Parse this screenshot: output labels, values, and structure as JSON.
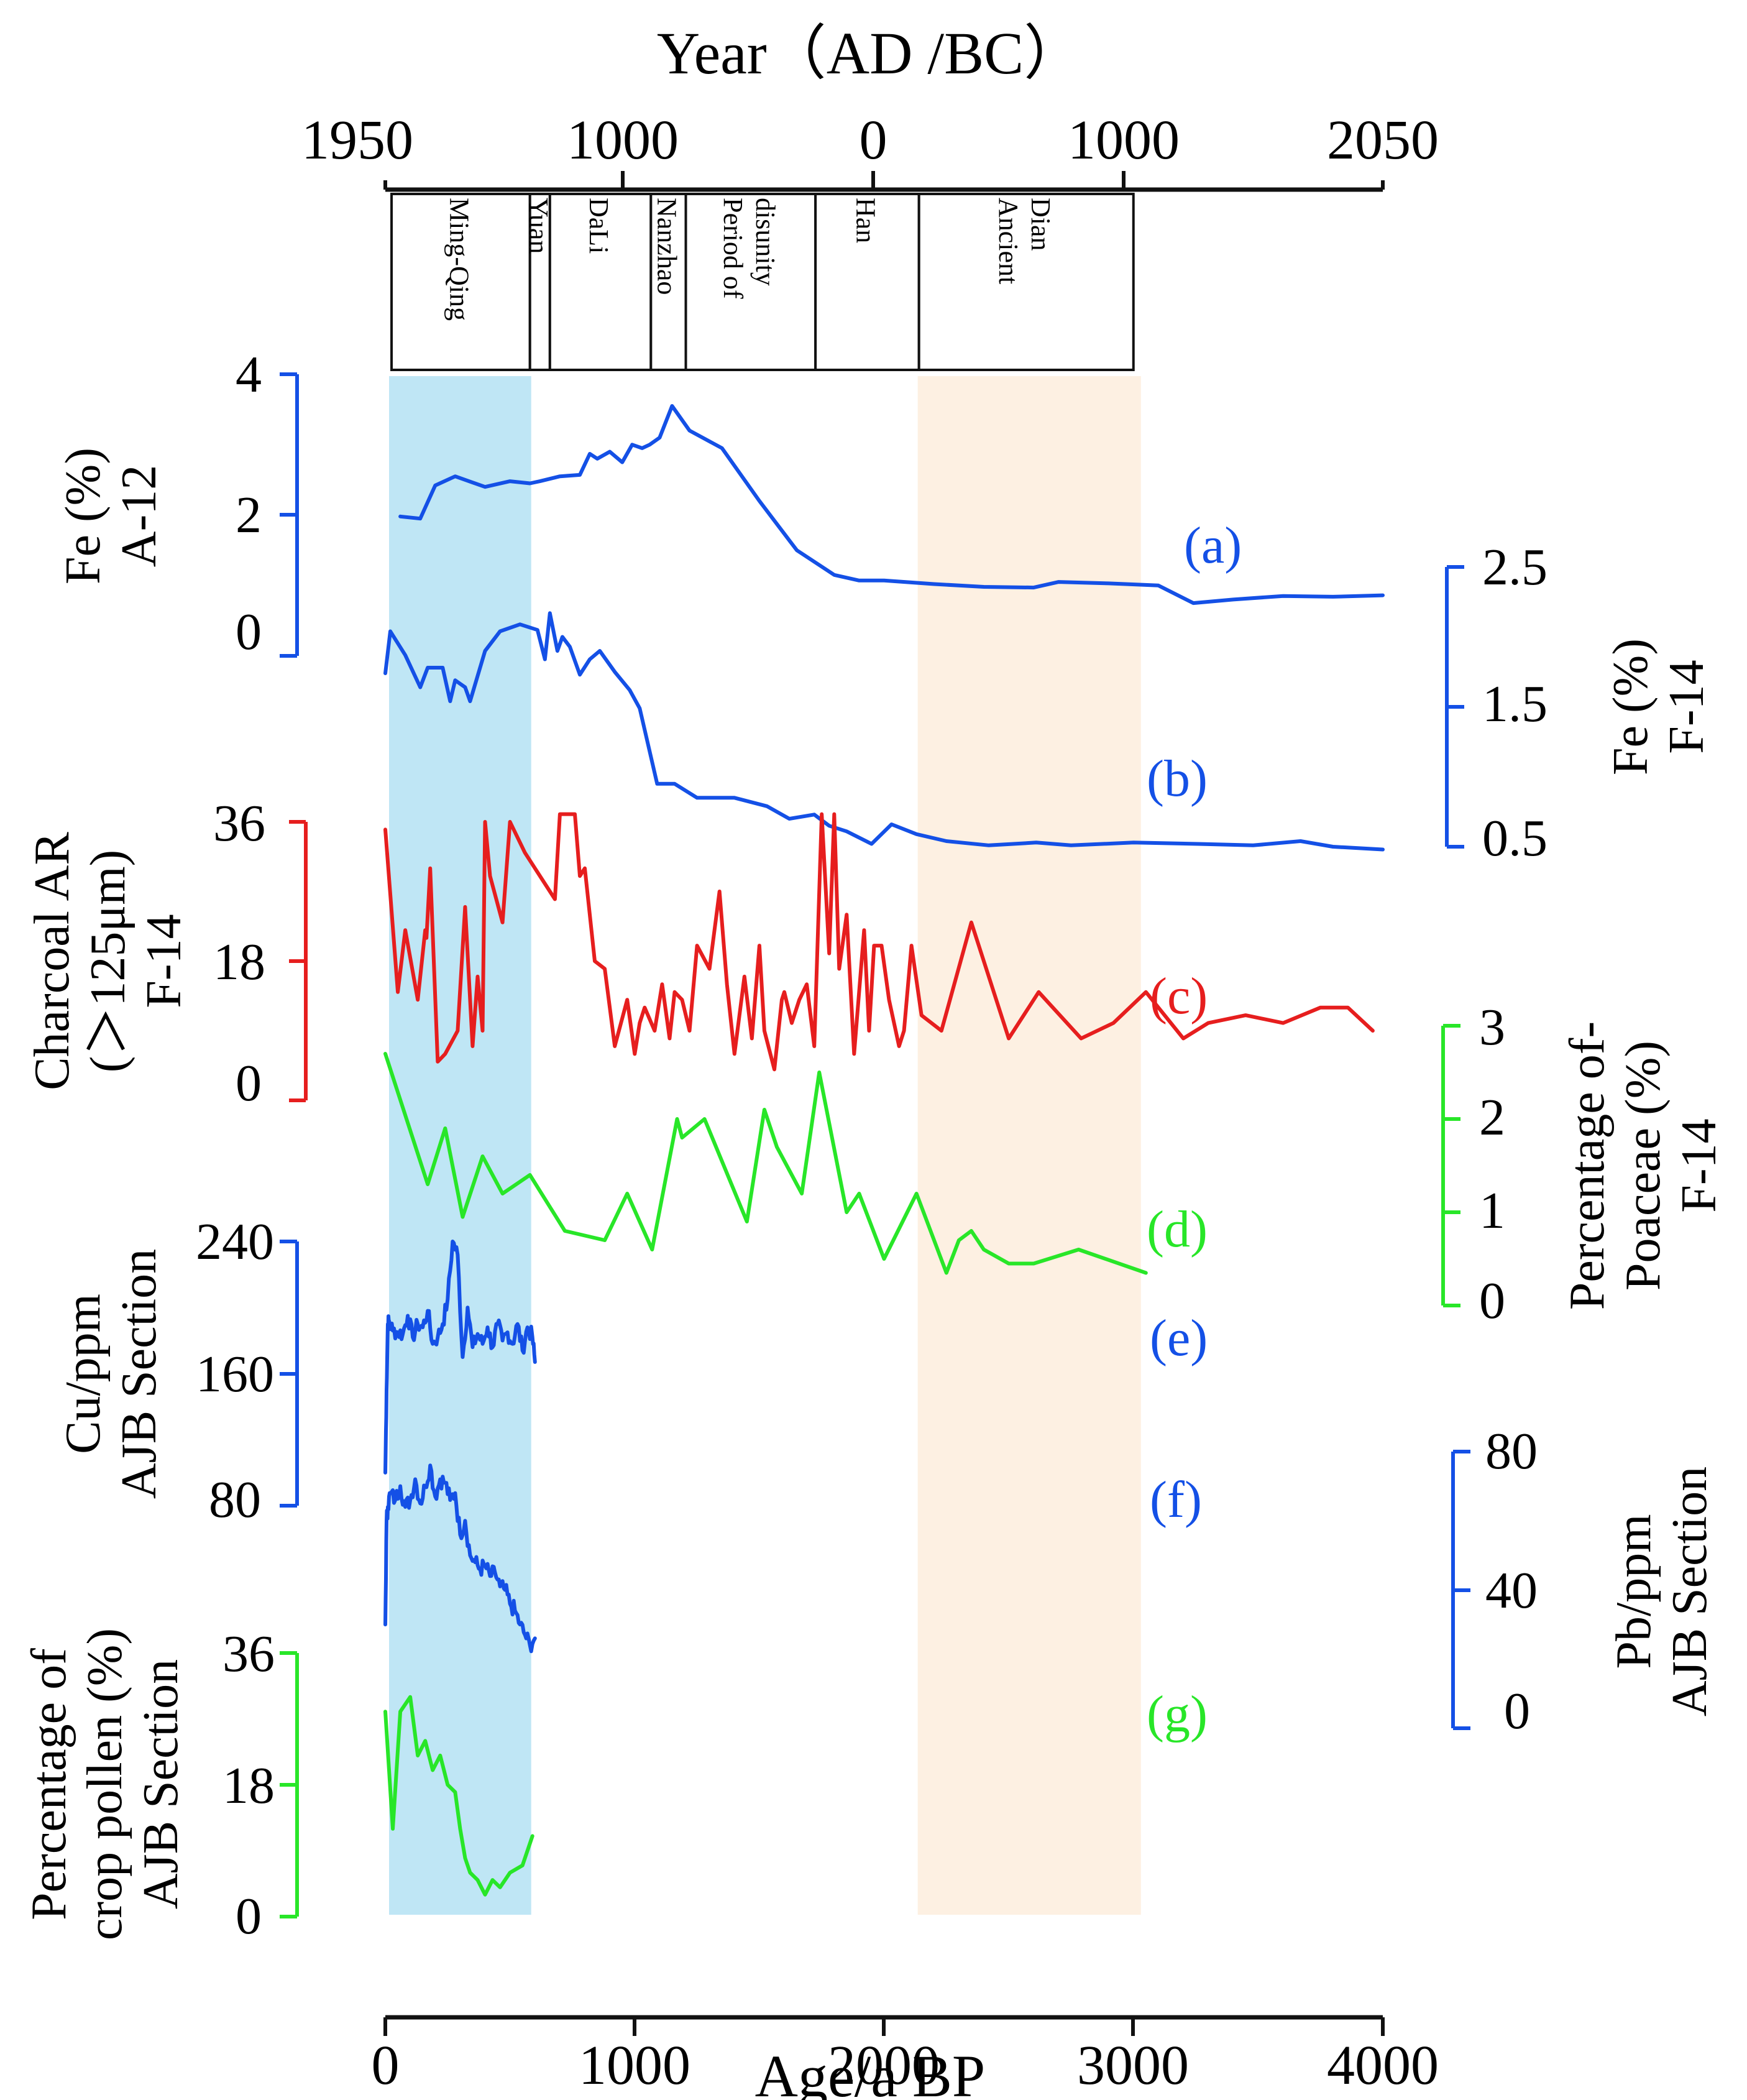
{
  "figure": {
    "top_axis_title": "Year（AD /BC）",
    "top_axis_ticks": [
      "1950",
      "1000",
      "0",
      "1000",
      "2050"
    ],
    "bottom_axis_title": "Age/a BP",
    "bottom_axis_ticks": [
      "0",
      "1000",
      "2000",
      "3000",
      "4000"
    ],
    "shading": [
      {
        "name": "Ming-Qing band",
        "from_bp": 15,
        "to_bp": 585,
        "color": "#bfe6f5"
      },
      {
        "name": "Ancient Dian band",
        "from_bp": 2135,
        "to_bp": 3030,
        "color": "#fdf0e2"
      }
    ],
    "periods": [
      {
        "label": [
          "Ming-Qing"
        ],
        "from_bp": 25,
        "to_bp": 580
      },
      {
        "label": [
          "Yuan"
        ],
        "from_bp": 580,
        "to_bp": 660
      },
      {
        "label": [
          "DaLi"
        ],
        "from_bp": 660,
        "to_bp": 1065
      },
      {
        "label": [
          "Nanzhao"
        ],
        "from_bp": 1065,
        "to_bp": 1205
      },
      {
        "label": [
          "Period of",
          "disunity"
        ],
        "from_bp": 1205,
        "to_bp": 1725
      },
      {
        "label": [
          "Han"
        ],
        "from_bp": 1725,
        "to_bp": 2140
      },
      {
        "label": [
          "Ancient",
          "Dian"
        ],
        "from_bp": 2140,
        "to_bp": 3000
      }
    ]
  },
  "axis_labels": {
    "a": [
      "Fe (%)",
      "A-12"
    ],
    "b": [
      "Fe (%)",
      "F-14"
    ],
    "c": [
      "Charcoal AR",
      "(＞125μm)",
      "F-14"
    ],
    "d": [
      "Percentage of-",
      "Poaceae (%)",
      "F-14"
    ],
    "e": [
      "Cu/ppm",
      "AJB Section"
    ],
    "f": [
      "Pb/ppm",
      "AJB Section"
    ],
    "g": [
      "Percentage of",
      "crop pollen (%)",
      "AJB Section"
    ]
  },
  "axis_ticks": {
    "a": [
      "4",
      "2",
      "0"
    ],
    "b": [
      "2.5",
      "1.5",
      "0.5"
    ],
    "c": [
      "36",
      "18",
      "0"
    ],
    "d": [
      "3",
      "2",
      "1",
      "0"
    ],
    "e": [
      "240",
      "160",
      "80"
    ],
    "f": [
      "80",
      "40",
      "0"
    ],
    "g": [
      "36",
      "18",
      "0"
    ]
  },
  "panel_labels": {
    "a": "(a)",
    "b": "(b)",
    "c": "(c)",
    "d": "(d)",
    "e": "(e)",
    "f": "(f)",
    "g": "(g)"
  },
  "colors": {
    "blue": "#1450e6",
    "red": "#e61e1e",
    "green": "#28e628",
    "black": "#111111"
  },
  "chart_data": {
    "type": "line",
    "title": "",
    "xlabel": "Age/a BP",
    "xlim": [
      0,
      4000
    ],
    "secondary_xlabel": "Year（AD /BC）",
    "series": [
      {
        "key": "a",
        "name": "Fe (%) A-12",
        "color": "blue",
        "ylim": [
          0,
          4
        ],
        "x": [
          60,
          140,
          200,
          280,
          400,
          500,
          580,
          620,
          700,
          780,
          820,
          850,
          900,
          950,
          990,
          1030,
          1060,
          1100,
          1150,
          1220,
          1350,
          1500,
          1650,
          1800,
          1900,
          2000,
          2200,
          2400,
          2600,
          2700,
          2900,
          3100,
          3240,
          3400,
          3600,
          3800,
          4000
        ],
        "y": [
          1.98,
          1.95,
          2.42,
          2.55,
          2.4,
          2.48,
          2.45,
          2.48,
          2.55,
          2.57,
          2.87,
          2.8,
          2.9,
          2.75,
          3.0,
          2.95,
          3.0,
          3.1,
          3.55,
          3.2,
          2.95,
          2.2,
          1.5,
          1.15,
          1.07,
          1.07,
          1.02,
          0.98,
          0.97,
          1.05,
          1.03,
          1.0,
          0.75,
          0.8,
          0.85,
          0.84,
          0.86
        ]
      },
      {
        "key": "b",
        "name": "Fe (%) F-14",
        "color": "blue",
        "ylim": [
          0.5,
          2.5
        ],
        "x": [
          0,
          20,
          80,
          140,
          170,
          230,
          260,
          280,
          320,
          340,
          400,
          460,
          540,
          610,
          640,
          660,
          690,
          710,
          740,
          780,
          820,
          860,
          920,
          980,
          1020,
          1090,
          1160,
          1250,
          1400,
          1530,
          1620,
          1720,
          1780,
          1850,
          1950,
          2030,
          2130,
          2250,
          2420,
          2610,
          2750,
          3000,
          3260,
          3480,
          3670,
          3800,
          4000
        ],
        "y": [
          1.74,
          2.04,
          1.87,
          1.64,
          1.78,
          1.78,
          1.54,
          1.69,
          1.64,
          1.54,
          1.9,
          2.04,
          2.09,
          2.05,
          1.84,
          2.17,
          1.9,
          2.0,
          1.93,
          1.73,
          1.84,
          1.9,
          1.75,
          1.62,
          1.49,
          0.95,
          0.95,
          0.85,
          0.85,
          0.79,
          0.7,
          0.73,
          0.65,
          0.61,
          0.52,
          0.66,
          0.59,
          0.54,
          0.51,
          0.53,
          0.51,
          0.53,
          0.52,
          0.51,
          0.54,
          0.5,
          0.48
        ]
      },
      {
        "key": "c",
        "name": "Charcoal AR (>125μm) F-14",
        "color": "red",
        "ylim": [
          0,
          36
        ],
        "x": [
          0,
          50,
          80,
          130,
          160,
          165,
          180,
          210,
          240,
          290,
          320,
          350,
          370,
          390,
          400,
          420,
          470,
          500,
          560,
          600,
          680,
          700,
          760,
          780,
          800,
          840,
          880,
          920,
          970,
          1000,
          1020,
          1040,
          1080,
          1110,
          1140,
          1160,
          1190,
          1220,
          1250,
          1300,
          1340,
          1370,
          1400,
          1440,
          1470,
          1500,
          1520,
          1560,
          1590,
          1600,
          1630,
          1660,
          1690,
          1720,
          1750,
          1780,
          1800,
          1820,
          1850,
          1880,
          1920,
          1940,
          1960,
          1990,
          2020,
          2060,
          2080,
          2110,
          2150,
          2230,
          2350,
          2500,
          2620,
          2790,
          2920,
          3050,
          3200,
          3300,
          3450,
          3600,
          3750,
          3860,
          3960
        ],
        "y": [
          35,
          14,
          22,
          13,
          22,
          21,
          30,
          5,
          6,
          9,
          25,
          7,
          16,
          9,
          36,
          29,
          23,
          36,
          32,
          30,
          26,
          37,
          37,
          29,
          30,
          18,
          17,
          7,
          13,
          6,
          10,
          12,
          9,
          15,
          8,
          14,
          13,
          9,
          20,
          17,
          27,
          15,
          6,
          16,
          8,
          20,
          9,
          4,
          13,
          14,
          10,
          13,
          15,
          7,
          37,
          19,
          37,
          17,
          24,
          6,
          22,
          9,
          20,
          20,
          13,
          7,
          9,
          20,
          11,
          9,
          23,
          8,
          14,
          8,
          10,
          14,
          8,
          10,
          11,
          10,
          12,
          12,
          9
        ]
      },
      {
        "key": "d",
        "name": "Percentage of Poaceae (%) F-14",
        "color": "green",
        "ylim": [
          0,
          3
        ],
        "x": [
          0,
          170,
          240,
          310,
          390,
          470,
          580,
          720,
          880,
          970,
          1070,
          1170,
          1190,
          1280,
          1450,
          1520,
          1570,
          1670,
          1740,
          1850,
          1900,
          2000,
          2130,
          2250,
          2300,
          2350,
          2400,
          2500,
          2600,
          2780,
          3050
        ],
        "y": [
          2.7,
          1.3,
          1.9,
          0.95,
          1.6,
          1.2,
          1.4,
          0.8,
          0.7,
          1.2,
          0.6,
          2.0,
          1.8,
          2.0,
          0.9,
          2.1,
          1.7,
          1.2,
          2.5,
          1.0,
          1.2,
          0.5,
          1.2,
          0.35,
          0.7,
          0.8,
          0.6,
          0.45,
          0.45,
          0.6,
          0.35
        ]
      },
      {
        "key": "e",
        "name": "Cu/ppm AJB Section",
        "color": "blue",
        "ylim": [
          80,
          240
        ],
        "x": [
          0,
          5,
          10,
          15,
          30,
          50,
          70,
          90,
          110,
          130,
          150,
          170,
          190,
          210,
          230,
          250,
          270,
          290,
          310,
          330,
          350,
          370,
          390,
          410,
          430,
          450,
          470,
          490,
          510,
          530,
          550,
          570,
          590,
          600
        ],
        "y": [
          100,
          150,
          190,
          192,
          186,
          185,
          184,
          195,
          182,
          190,
          188,
          198,
          178,
          182,
          190,
          205,
          240,
          232,
          170,
          200,
          176,
          184,
          178,
          188,
          176,
          190,
          180,
          185,
          178,
          190,
          174,
          188,
          182,
          167
        ],
        "noise": 5
      },
      {
        "key": "f",
        "name": "Pb/ppm AJB Section",
        "color": "blue",
        "ylim": [
          0,
          80
        ],
        "x": [
          0,
          5,
          10,
          20,
          40,
          60,
          80,
          100,
          120,
          140,
          160,
          180,
          200,
          220,
          240,
          260,
          280,
          300,
          320,
          340,
          360,
          380,
          400,
          420,
          440,
          460,
          480,
          500,
          520,
          540,
          560,
          580,
          600
        ],
        "y": [
          30,
          60,
          64,
          68,
          66,
          70,
          64,
          66,
          72,
          65,
          70,
          76,
          67,
          72,
          71,
          66,
          68,
          56,
          60,
          50,
          48,
          46,
          47,
          44,
          45,
          41,
          40,
          36,
          34,
          30,
          27,
          24,
          26
        ],
        "noise": 2.5
      },
      {
        "key": "g",
        "name": "Percentage of crop pollen (%) AJB Section",
        "color": "green",
        "ylim": [
          0,
          36
        ],
        "x": [
          0,
          30,
          60,
          100,
          130,
          160,
          190,
          220,
          250,
          280,
          300,
          320,
          340,
          370,
          400,
          430,
          460,
          500,
          550,
          590
        ],
        "y": [
          28,
          12,
          28,
          30,
          22,
          24,
          20,
          22,
          18,
          17,
          12,
          8,
          6,
          5,
          3,
          5,
          4,
          6,
          7,
          11
        ]
      }
    ]
  }
}
